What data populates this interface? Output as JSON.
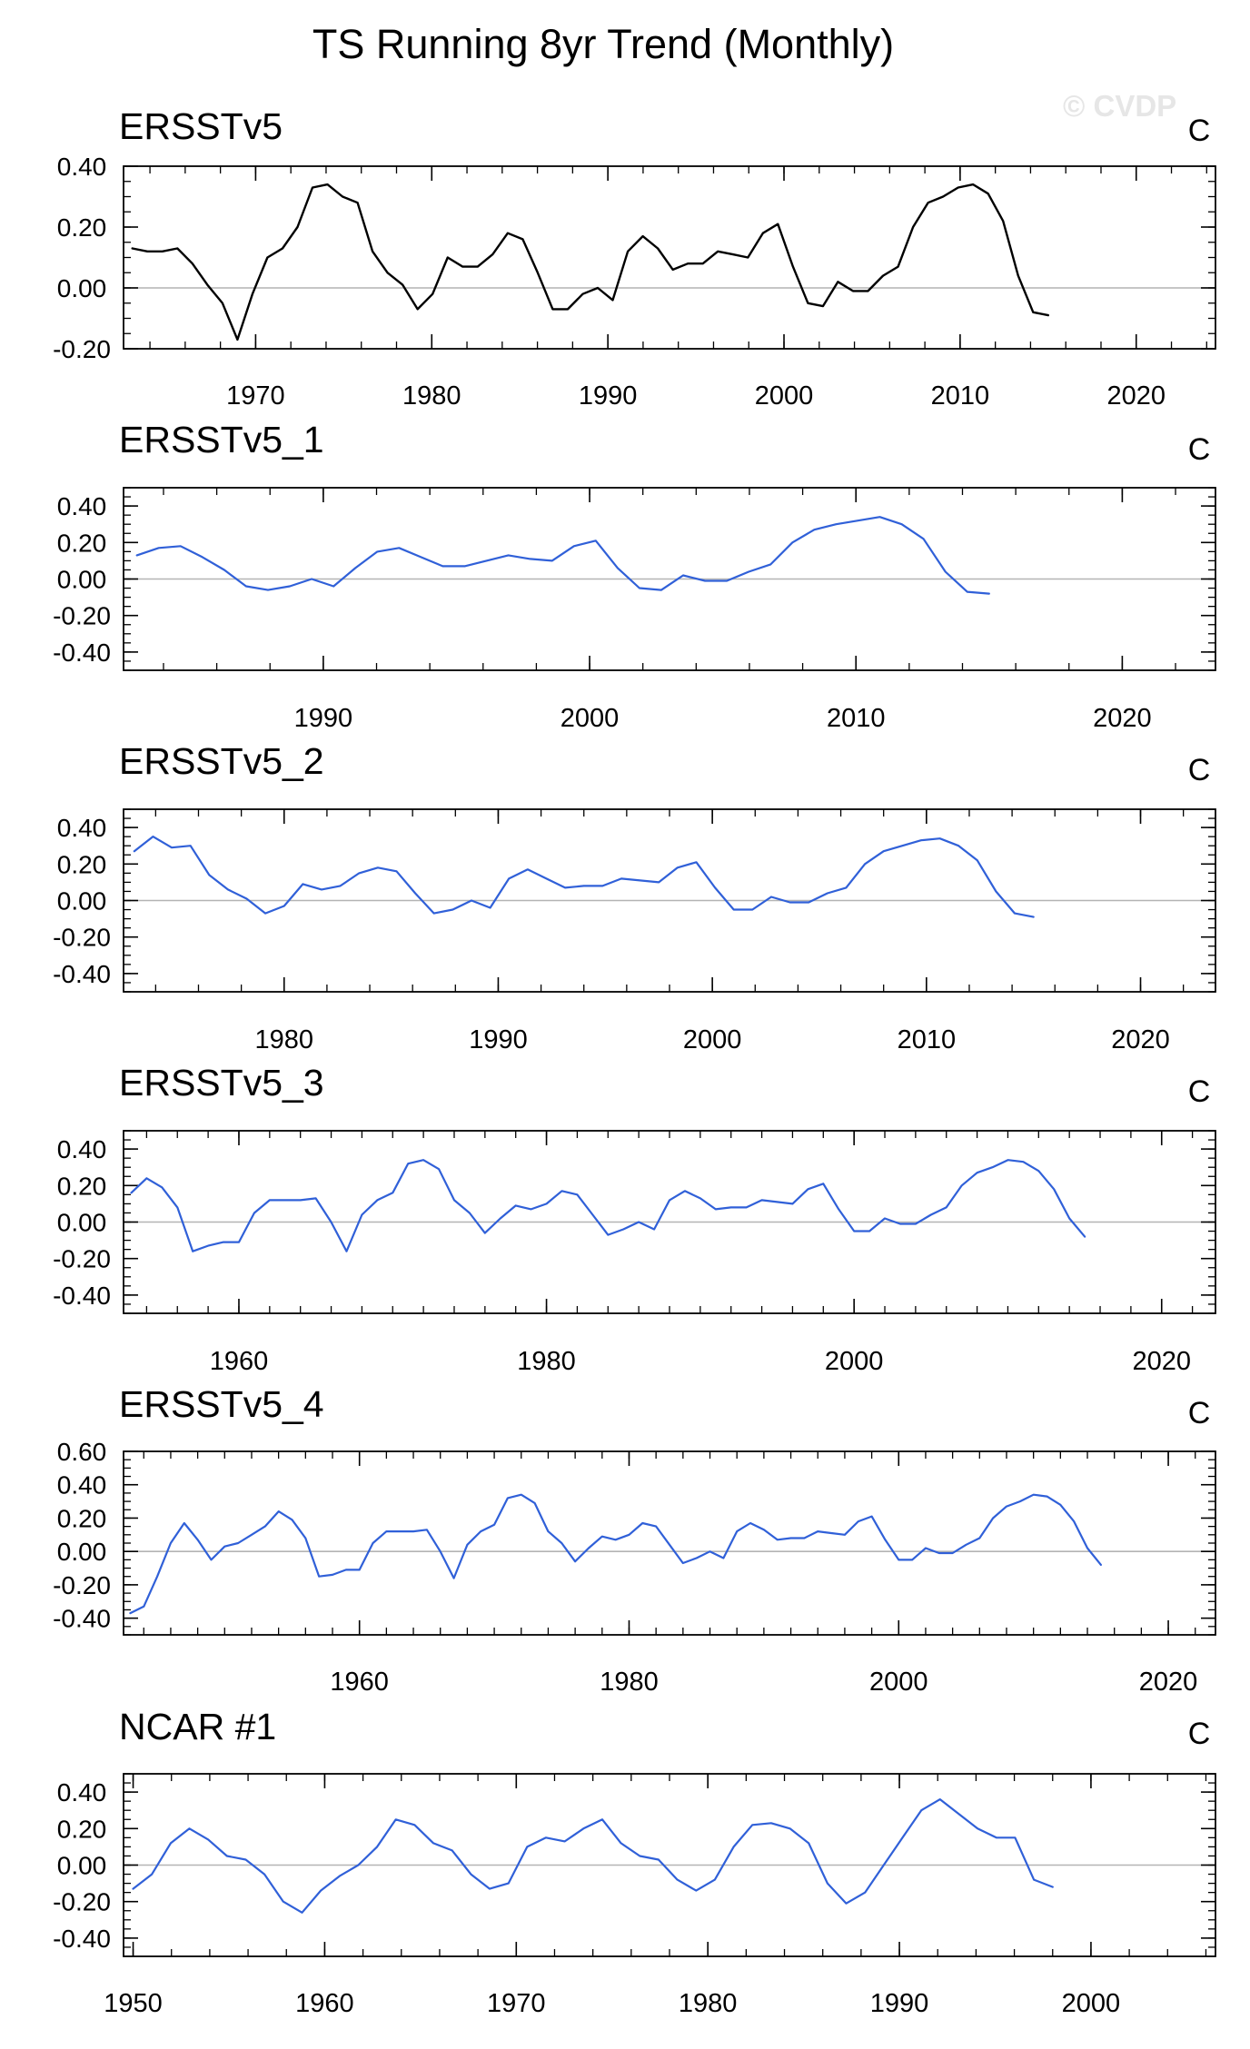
{
  "figure": {
    "title": "TS Running 8yr Trend (Monthly)",
    "credit": "© CVDP"
  },
  "colors": {
    "observed_line": "#000000",
    "member_line": "#3060d8",
    "zero_line": "#b4b4b4",
    "frame": "#000000"
  },
  "chart_data": [
    {
      "type": "line",
      "title": "ERSSTv5",
      "units": "C",
      "color": "#000000",
      "xlim": [
        1962.5,
        2024.5
      ],
      "ylim": [
        -0.2,
        0.4
      ],
      "yticks": [
        -0.2,
        0.0,
        0.2,
        0.4
      ],
      "ytick_labels": [
        "-0.20",
        "0.00",
        "0.20",
        "0.40"
      ],
      "xticks": [
        1970,
        1980,
        1990,
        2000,
        2010,
        2020
      ],
      "xtick_labels": [
        "1970",
        "1980",
        "1990",
        "2000",
        "2010",
        "2020"
      ],
      "x_start": 1963.0,
      "x_end": 2015.0,
      "values": [
        0.13,
        0.12,
        0.12,
        0.13,
        0.08,
        0.01,
        -0.05,
        -0.17,
        -0.02,
        0.1,
        0.13,
        0.2,
        0.33,
        0.34,
        0.3,
        0.28,
        0.12,
        0.05,
        0.01,
        -0.07,
        -0.02,
        0.1,
        0.07,
        0.07,
        0.11,
        0.18,
        0.16,
        0.05,
        -0.07,
        -0.07,
        -0.02,
        0.0,
        -0.04,
        0.12,
        0.17,
        0.13,
        0.06,
        0.08,
        0.08,
        0.12,
        0.11,
        0.1,
        0.18,
        0.21,
        0.07,
        -0.05,
        -0.06,
        0.02,
        -0.01,
        -0.01,
        0.04,
        0.07,
        0.2,
        0.28,
        0.3,
        0.33,
        0.34,
        0.31,
        0.22,
        0.04,
        -0.08,
        -0.09
      ]
    },
    {
      "type": "line",
      "title": "ERSSTv5_1",
      "units": "C",
      "color": "#3060d8",
      "xlim": [
        1982.5,
        2023.5
      ],
      "ylim": [
        -0.5,
        0.5
      ],
      "yticks": [
        -0.4,
        -0.2,
        0.0,
        0.2,
        0.4
      ],
      "ytick_labels": [
        "-0.40",
        "-0.20",
        "0.00",
        "0.20",
        "0.40"
      ],
      "xticks": [
        1990,
        2000,
        2010,
        2020
      ],
      "xtick_labels": [
        "1990",
        "2000",
        "2010",
        "2020"
      ],
      "x_start": 1983.0,
      "x_end": 2015.0,
      "values": [
        0.13,
        0.17,
        0.18,
        0.12,
        0.05,
        -0.04,
        -0.06,
        -0.04,
        0.0,
        -0.04,
        0.06,
        0.15,
        0.17,
        0.12,
        0.07,
        0.07,
        0.1,
        0.13,
        0.11,
        0.1,
        0.18,
        0.21,
        0.06,
        -0.05,
        -0.06,
        0.02,
        -0.01,
        -0.01,
        0.04,
        0.08,
        0.2,
        0.27,
        0.3,
        0.32,
        0.34,
        0.3,
        0.22,
        0.04,
        -0.07,
        -0.08
      ]
    },
    {
      "type": "line",
      "title": "ERSSTv5_2",
      "units": "C",
      "color": "#3060d8",
      "xlim": [
        1972.5,
        2023.5
      ],
      "ylim": [
        -0.5,
        0.5
      ],
      "yticks": [
        -0.4,
        -0.2,
        0.0,
        0.2,
        0.4
      ],
      "ytick_labels": [
        "-0.40",
        "-0.20",
        "0.00",
        "0.20",
        "0.40"
      ],
      "xticks": [
        1980,
        1990,
        2000,
        2010,
        2020
      ],
      "xtick_labels": [
        "1980",
        "1990",
        "2000",
        "2010",
        "2020"
      ],
      "x_start": 1973.0,
      "x_end": 2015.0,
      "values": [
        0.27,
        0.35,
        0.29,
        0.3,
        0.14,
        0.06,
        0.01,
        -0.07,
        -0.03,
        0.09,
        0.06,
        0.08,
        0.15,
        0.18,
        0.16,
        0.04,
        -0.07,
        -0.05,
        0.0,
        -0.04,
        0.12,
        0.17,
        0.12,
        0.07,
        0.08,
        0.08,
        0.12,
        0.11,
        0.1,
        0.18,
        0.21,
        0.07,
        -0.05,
        -0.05,
        0.02,
        -0.01,
        -0.01,
        0.04,
        0.07,
        0.2,
        0.27,
        0.3,
        0.33,
        0.34,
        0.3,
        0.22,
        0.05,
        -0.07,
        -0.09
      ]
    },
    {
      "type": "line",
      "title": "ERSSTv5_3",
      "units": "C",
      "color": "#3060d8",
      "xlim": [
        1952.5,
        2023.5
      ],
      "ylim": [
        -0.5,
        0.5
      ],
      "yticks": [
        -0.4,
        -0.2,
        0.0,
        0.2,
        0.4
      ],
      "ytick_labels": [
        "-0.40",
        "-0.20",
        "0.00",
        "0.20",
        "0.40"
      ],
      "xticks": [
        1960,
        1980,
        2000,
        2020
      ],
      "xtick_labels": [
        "1960",
        "1980",
        "2000",
        "2020"
      ],
      "x_start": 1953.0,
      "x_end": 2015.0,
      "values": [
        0.16,
        0.24,
        0.19,
        0.08,
        -0.16,
        -0.13,
        -0.11,
        -0.11,
        0.05,
        0.12,
        0.12,
        0.12,
        0.13,
        0.0,
        -0.16,
        0.04,
        0.12,
        0.16,
        0.32,
        0.34,
        0.29,
        0.12,
        0.05,
        -0.06,
        0.02,
        0.09,
        0.07,
        0.1,
        0.17,
        0.15,
        0.04,
        -0.07,
        -0.04,
        0.0,
        -0.04,
        0.12,
        0.17,
        0.13,
        0.07,
        0.08,
        0.08,
        0.12,
        0.11,
        0.1,
        0.18,
        0.21,
        0.07,
        -0.05,
        -0.05,
        0.02,
        -0.01,
        -0.01,
        0.04,
        0.08,
        0.2,
        0.27,
        0.3,
        0.34,
        0.33,
        0.28,
        0.18,
        0.02,
        -0.08
      ]
    },
    {
      "type": "line",
      "title": "ERSSTv5_4",
      "units": "C",
      "color": "#3060d8",
      "xlim": [
        1942.5,
        2023.5
      ],
      "ylim": [
        -0.5,
        0.6
      ],
      "yticks": [
        -0.4,
        -0.2,
        0.0,
        0.2,
        0.4,
        0.6
      ],
      "ytick_labels": [
        "-0.40",
        "-0.20",
        "0.00",
        "0.20",
        "0.40",
        "0.60"
      ],
      "xticks": [
        1960,
        1980,
        2000,
        2020
      ],
      "xtick_labels": [
        "1960",
        "1980",
        "2000",
        "2020"
      ],
      "x_start": 1943.0,
      "x_end": 2015.0,
      "values": [
        -0.37,
        -0.33,
        -0.15,
        0.05,
        0.17,
        0.07,
        -0.05,
        0.03,
        0.05,
        0.1,
        0.15,
        0.24,
        0.19,
        0.08,
        -0.15,
        -0.14,
        -0.11,
        -0.11,
        0.05,
        0.12,
        0.12,
        0.12,
        0.13,
        0.0,
        -0.16,
        0.04,
        0.12,
        0.16,
        0.32,
        0.34,
        0.29,
        0.12,
        0.05,
        -0.06,
        0.02,
        0.09,
        0.07,
        0.1,
        0.17,
        0.15,
        0.04,
        -0.07,
        -0.04,
        0.0,
        -0.04,
        0.12,
        0.17,
        0.13,
        0.07,
        0.08,
        0.08,
        0.12,
        0.11,
        0.1,
        0.18,
        0.21,
        0.07,
        -0.05,
        -0.05,
        0.02,
        -0.01,
        -0.01,
        0.04,
        0.08,
        0.2,
        0.27,
        0.3,
        0.34,
        0.33,
        0.28,
        0.18,
        0.02,
        -0.08
      ]
    },
    {
      "type": "line",
      "title": "NCAR #1",
      "units": "C",
      "color": "#3060d8",
      "xlim": [
        1949.5,
        2006.5
      ],
      "ylim": [
        -0.5,
        0.5
      ],
      "yticks": [
        -0.4,
        -0.2,
        0.0,
        0.2,
        0.4
      ],
      "ytick_labels": [
        "-0.40",
        "-0.20",
        "0.00",
        "0.20",
        "0.40"
      ],
      "xticks": [
        1950,
        1960,
        1970,
        1980,
        1990,
        2000
      ],
      "xtick_labels": [
        "1950",
        "1960",
        "1970",
        "1980",
        "1990",
        "2000"
      ],
      "x_start": 1950.0,
      "x_end": 1998.0,
      "values": [
        -0.13,
        -0.05,
        0.12,
        0.2,
        0.14,
        0.05,
        0.03,
        -0.05,
        -0.2,
        -0.26,
        -0.14,
        -0.06,
        0.0,
        0.1,
        0.25,
        0.22,
        0.12,
        0.08,
        -0.05,
        -0.13,
        -0.1,
        0.1,
        0.15,
        0.13,
        0.2,
        0.25,
        0.12,
        0.05,
        0.03,
        -0.08,
        -0.14,
        -0.08,
        0.1,
        0.22,
        0.23,
        0.2,
        0.12,
        -0.1,
        -0.21,
        -0.15,
        0.0,
        0.15,
        0.3,
        0.36,
        0.28,
        0.2,
        0.15,
        0.15,
        -0.08,
        -0.12
      ]
    }
  ]
}
